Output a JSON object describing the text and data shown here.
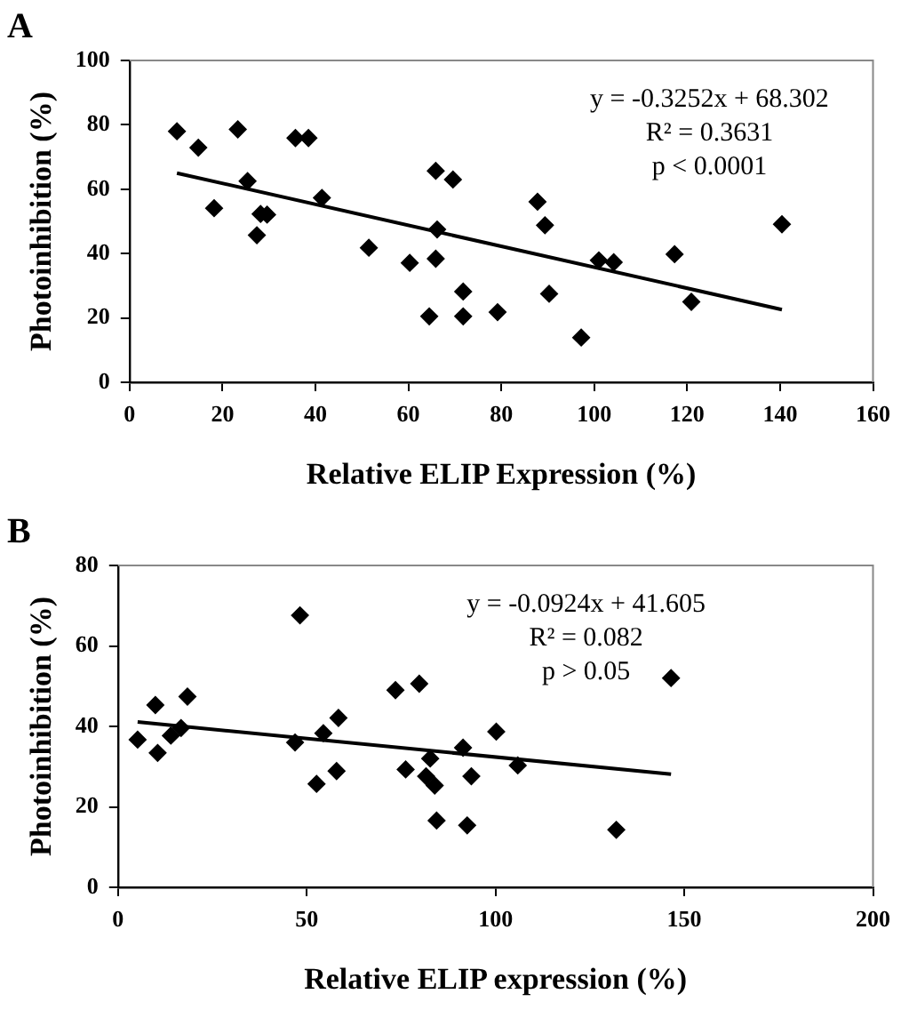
{
  "chart_data": [
    {
      "type": "scatter",
      "title": "A",
      "xlabel": "Relative ELIP Expression (%)",
      "ylabel": "Photoinhibition (%)",
      "xlim": [
        0,
        160
      ],
      "xticks": [
        0,
        20,
        40,
        60,
        80,
        100,
        120,
        140,
        160
      ],
      "ylim": [
        0,
        100
      ],
      "yticks": [
        0,
        20,
        40,
        60,
        80,
        100
      ],
      "grid": false,
      "legend": false,
      "marker": "diamond",
      "annotations": [
        "y = -0.3252x + 68.302",
        "R² = 0.3631",
        "p < 0.0001"
      ],
      "series": [
        {
          "type": "scatter",
          "color": "#000000",
          "x": [
            10.2,
            14.8,
            18.2,
            23.3,
            25.4,
            27.4,
            28.2,
            29.6,
            35.7,
            38.5,
            41.4,
            51.5,
            60.3,
            64.5,
            65.9,
            65.9,
            66.2,
            69.6,
            71.8,
            71.8,
            79.2,
            87.8,
            89.4,
            90.3,
            97.2,
            101.0,
            104.2,
            117.3,
            120.9,
            140.4
          ],
          "values": [
            78.0,
            72.9,
            54.1,
            78.6,
            62.5,
            45.7,
            52.3,
            52.1,
            75.9,
            75.9,
            57.3,
            41.8,
            37.1,
            20.5,
            65.7,
            38.4,
            47.5,
            63.0,
            28.2,
            20.5,
            21.8,
            56.1,
            48.8,
            27.5,
            13.9,
            37.9,
            37.3,
            39.8,
            25.0,
            49.1
          ]
        },
        {
          "type": "line",
          "color": "#000000",
          "marker": "none",
          "x": [
            10.2,
            140.4
          ],
          "values": [
            65.0,
            22.6
          ]
        }
      ]
    },
    {
      "type": "scatter",
      "title": "B",
      "xlabel": "Relative ELIP expression (%)",
      "ylabel": "Photoinhibition (%)",
      "xlim": [
        0,
        200
      ],
      "xticks": [
        0,
        50,
        100,
        150,
        200
      ],
      "ylim": [
        0,
        80
      ],
      "yticks": [
        0,
        20,
        40,
        60,
        80
      ],
      "grid": false,
      "legend": false,
      "marker": "diamond",
      "annotations": [
        "y = -0.0924x + 41.605",
        "R² = 0.082",
        "p > 0.05"
      ],
      "series": [
        {
          "type": "scatter",
          "color": "#000000",
          "x": [
            5.2,
            9.9,
            10.5,
            14.0,
            15.6,
            16.7,
            18.4,
            46.9,
            48.2,
            52.6,
            54.4,
            57.9,
            58.4,
            73.5,
            76.2,
            79.8,
            81.6,
            82.7,
            83.9,
            84.4,
            91.4,
            92.5,
            93.6,
            100.2,
            105.9,
            132.0,
            146.5
          ],
          "values": [
            36.7,
            45.3,
            33.4,
            37.7,
            null,
            39.6,
            47.4,
            36.0,
            67.6,
            25.7,
            38.3,
            28.9,
            42.1,
            49.0,
            29.3,
            50.6,
            27.6,
            32.0,
            25.3,
            16.6,
            34.7,
            15.4,
            27.6,
            38.7,
            30.3,
            14.3,
            52.0
          ]
        },
        {
          "type": "line",
          "color": "#000000",
          "marker": "none",
          "x": [
            5.2,
            146.5
          ],
          "values": [
            41.1,
            28.1
          ]
        }
      ]
    }
  ]
}
